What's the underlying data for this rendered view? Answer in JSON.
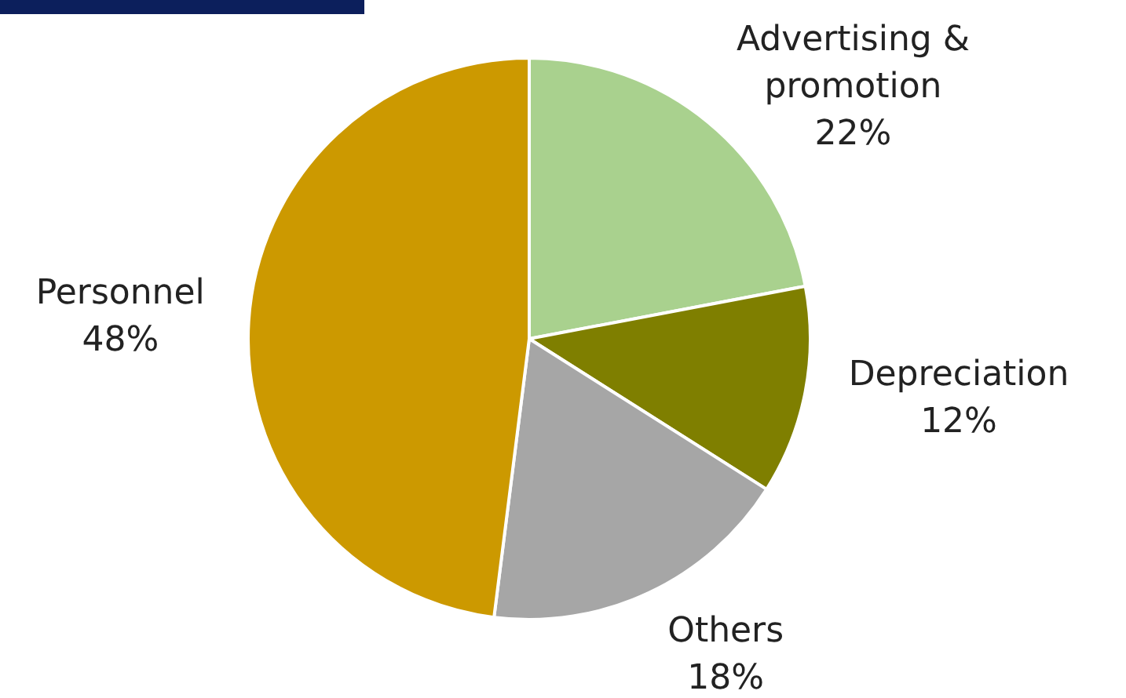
{
  "chart_data": {
    "type": "pie",
    "categories": [
      "Advertising & promotion",
      "Depreciation",
      "Others",
      "Personnel"
    ],
    "values": [
      22,
      12,
      18,
      48
    ],
    "colors": [
      "#a9d18e",
      "#7f7f00",
      "#a6a6a6",
      "#cc9900"
    ],
    "value_labels": [
      "22%",
      "12%",
      "18%",
      "48%"
    ]
  }
}
